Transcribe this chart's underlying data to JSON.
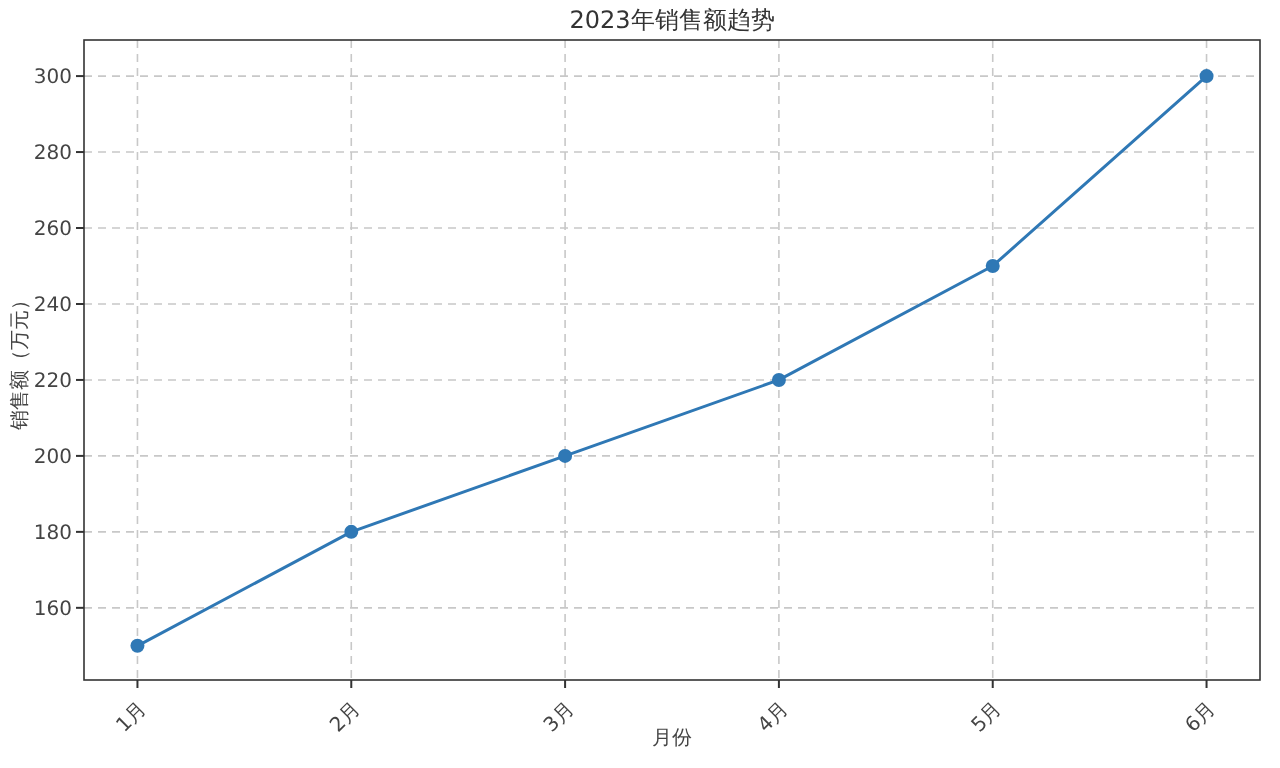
{
  "chart_data": {
    "type": "line",
    "title": "2023年销售额趋势",
    "xlabel": "月份",
    "ylabel": "销售额（万元）",
    "categories": [
      "1月",
      "2月",
      "3月",
      "4月",
      "5月",
      "6月"
    ],
    "series": [
      {
        "color": "#2f78b5",
        "values": [
          150,
          180,
          200,
          220,
          250,
          300
        ]
      }
    ],
    "ylim": [
      141,
      309.5
    ],
    "yticks": [
      160,
      180,
      200,
      220,
      240,
      260,
      280,
      300
    ],
    "grid": true,
    "marker": "circle",
    "line_style": "solid"
  }
}
